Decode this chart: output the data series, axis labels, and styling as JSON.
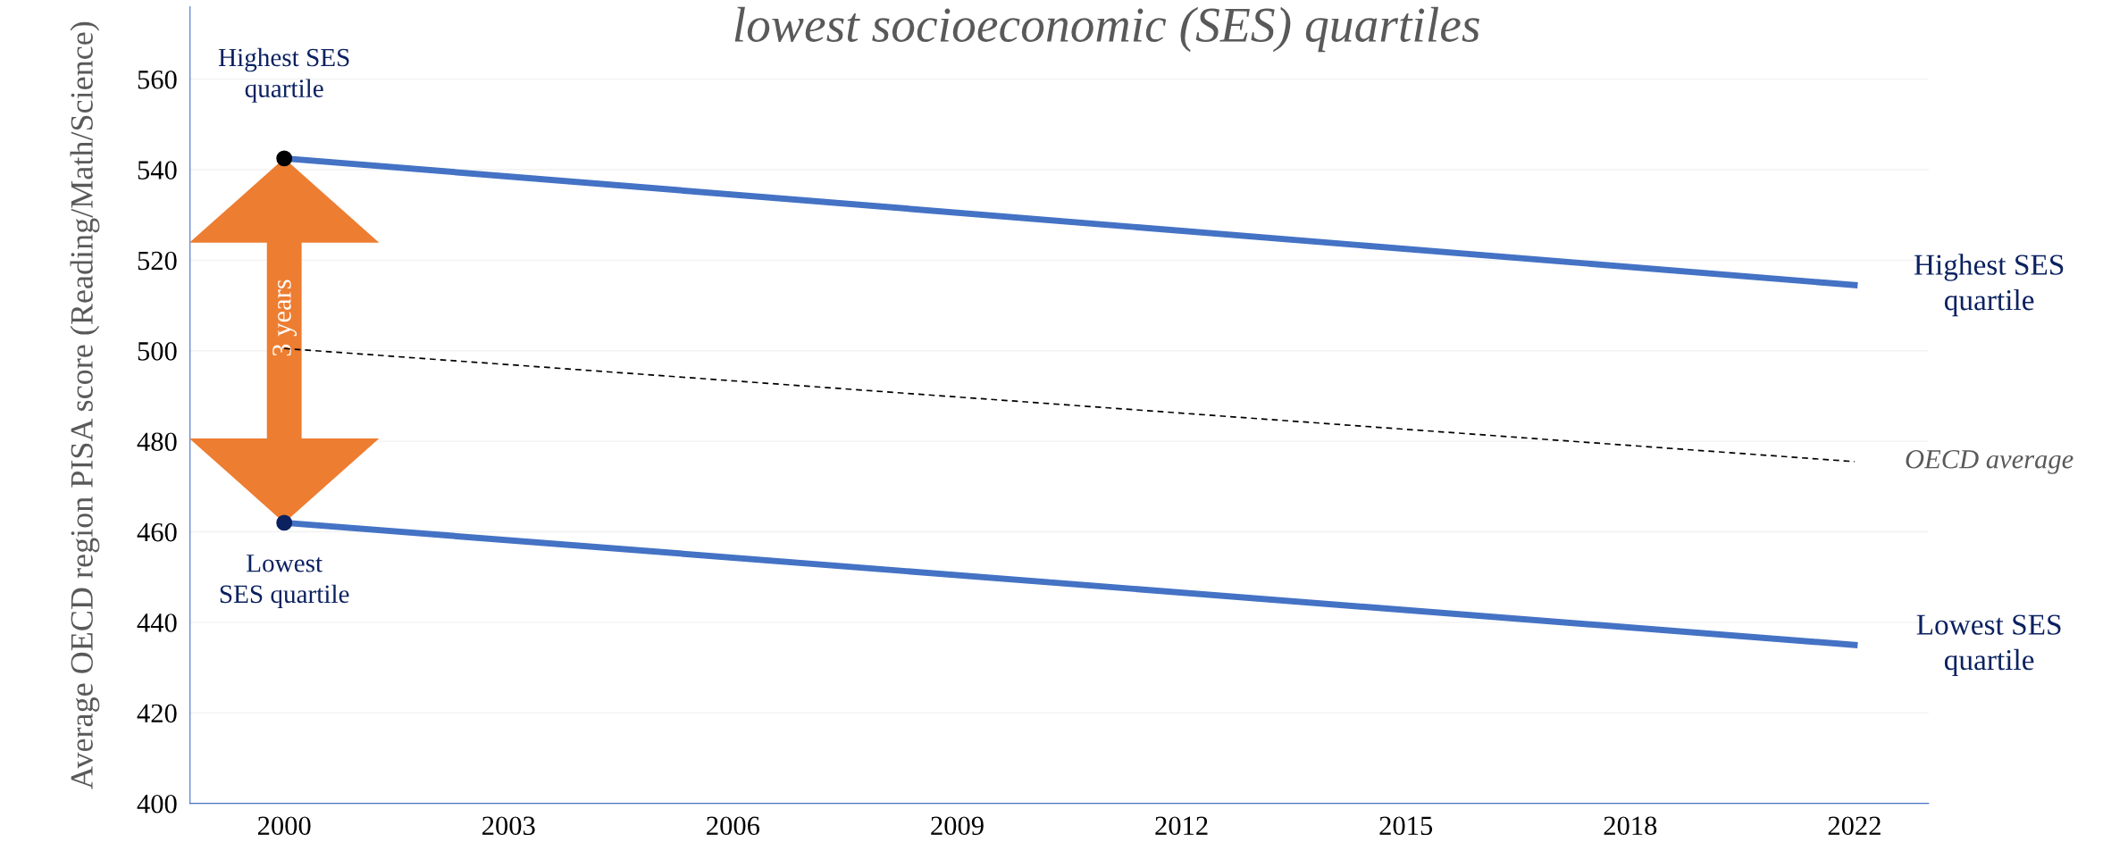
{
  "chart_data": {
    "type": "line",
    "title": "lowest socioeconomic (SES) quartiles",
    "ylabel": "Average OECD region PISA score (Reading/Math/Science)",
    "categories": [
      "2000",
      "2003",
      "2006",
      "2009",
      "2012",
      "2015",
      "2018",
      "2022"
    ],
    "series": [
      {
        "name": "Highest SES\nquartile",
        "color": "#4472c4",
        "values": [
          542.5,
          null,
          null,
          null,
          null,
          null,
          null,
          514.5
        ]
      },
      {
        "name": "OECD average",
        "color": "#000000",
        "line_style": "dashed",
        "values": [
          500.5,
          null,
          null,
          null,
          null,
          null,
          null,
          475.5
        ]
      },
      {
        "name": "Lowest SES\nquartile",
        "color": "#4472c4",
        "values": [
          462,
          null,
          null,
          null,
          null,
          null,
          null,
          435
        ]
      }
    ],
    "ylim": [
      400,
      576
    ],
    "yticks": [
      400,
      420,
      440,
      460,
      480,
      500,
      520,
      540,
      560
    ],
    "grid": "y",
    "annotations": [
      {
        "text": "Highest SES\nquartile",
        "x": "2000",
        "y": 542.5
      },
      {
        "text": "Lowest\nSES quartile",
        "x": "2000",
        "y": 462
      },
      "3 years"
    ]
  }
}
